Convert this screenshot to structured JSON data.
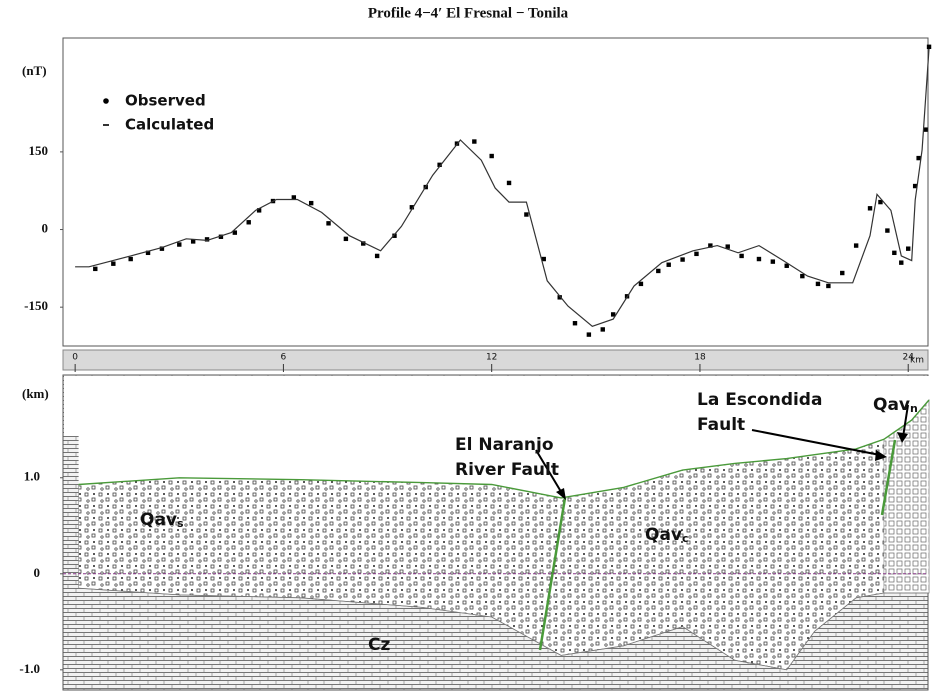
{
  "chart_data": [
    {
      "type": "line",
      "title": "Profile 4−4′ El Fresnal − Tonila",
      "ylabel": "(nT)",
      "xlabel": "km",
      "xlim": [
        -0.35,
        24.57
      ],
      "xticks": [
        0,
        6,
        12,
        18,
        24
      ],
      "ylim": [
        -225,
        370
      ],
      "yticks": [
        150,
        0,
        -150
      ],
      "series": [
        {
          "name": "Observed",
          "color": "#000000",
          "marker": "square",
          "x": [
            0.58,
            1.1,
            1.6,
            2.1,
            2.5,
            3.0,
            3.4,
            3.8,
            4.2,
            4.6,
            5.0,
            5.3,
            5.7,
            6.3,
            6.8,
            7.3,
            7.8,
            8.3,
            8.7,
            9.2,
            9.7,
            10.1,
            10.5,
            11.0,
            11.5,
            12.0,
            12.5,
            13.0,
            13.5,
            13.96,
            14.4,
            14.8,
            15.2,
            15.5,
            15.9,
            16.3,
            16.8,
            17.1,
            17.5,
            17.9,
            18.3,
            18.8,
            19.2,
            19.7,
            20.1,
            20.5,
            20.95,
            21.4,
            21.7,
            22.1,
            22.5,
            22.9,
            23.2,
            23.4,
            23.6,
            23.8,
            24.0,
            24.2,
            24.3,
            24.5,
            24.6
          ],
          "values": [
            -76,
            -66,
            -57,
            -45,
            -37,
            -29,
            -23,
            -19,
            -14,
            -6,
            14,
            37,
            55,
            62,
            51,
            12,
            -18,
            -27,
            -51,
            -12,
            43,
            82,
            125,
            166,
            170,
            142,
            90,
            29,
            -57,
            -131,
            -181,
            -203,
            -193,
            -164,
            -129,
            -105,
            -80,
            -68,
            -58,
            -47,
            -31,
            -33,
            -51,
            -57,
            -62,
            -70,
            -90,
            -105,
            -109,
            -84,
            -31,
            41,
            53,
            -2,
            -45,
            -64,
            -37,
            84,
            138,
            193,
            353
          ]
        },
        {
          "name": "Calculated",
          "color": "#333333",
          "x": [
            0,
            0.4,
            1.6,
            2.5,
            3.2,
            3.8,
            4.5,
            5.2,
            5.8,
            6.4,
            7.1,
            7.9,
            8.8,
            9.4,
            10.3,
            11.1,
            11.7,
            12.1,
            12.5,
            13.0,
            13.6,
            14.2,
            14.9,
            15.5,
            16.1,
            16.9,
            17.8,
            18.5,
            19.1,
            19.7,
            20.4,
            21.1,
            21.7,
            22.4,
            22.9,
            23.1,
            23.5,
            23.8,
            24.1,
            24.2,
            24.4,
            24.6
          ],
          "values": [
            -72,
            -72,
            -51,
            -35,
            -18,
            -21,
            -6,
            37,
            58,
            58,
            33,
            -12,
            -41,
            6,
            105,
            173,
            134,
            80,
            53,
            53,
            -99,
            -148,
            -187,
            -173,
            -109,
            -64,
            -41,
            -31,
            -45,
            -31,
            -60,
            -90,
            -103,
            -103,
            -12,
            68,
            37,
            -51,
            -60,
            57,
            154,
            349
          ]
        }
      ]
    },
    {
      "type": "cross-section",
      "ylabel": "(km)",
      "xlim": [
        -0.35,
        24.57
      ],
      "ylim": [
        -1.21,
        2.07
      ],
      "yticks": [
        {
          "value": 1,
          "label": "1.0"
        },
        0,
        {
          "value": -1,
          "label": "-1.0"
        }
      ],
      "x": [
        0.1,
        3,
        6.5,
        10,
        12,
        14,
        15.8,
        17.5,
        19,
        20.5,
        21.3,
        22.5,
        23.3,
        24.1,
        24.6
      ],
      "surface": [
        0.93,
        1.0,
        0.98,
        0.95,
        0.93,
        0.79,
        0.9,
        1.08,
        1.15,
        1.2,
        1.24,
        1.3,
        1.4,
        1.6,
        1.81
      ],
      "base": [
        -0.15,
        -0.22,
        -0.25,
        -0.35,
        -0.45,
        -0.85,
        -0.75,
        -0.55,
        -0.9,
        -1.0,
        -0.6,
        -0.25,
        -0.2,
        -0.2,
        -0.2
      ],
      "annotations": [
        {
          "text": "Qav",
          "sub": "s"
        },
        {
          "text": "Qav",
          "sub": "c"
        },
        {
          "text": "Qav",
          "sub": "n"
        },
        {
          "text": "Cz"
        },
        {
          "lines": [
            "El Naranjo",
            "River Fault"
          ]
        },
        {
          "lines": [
            "La Escondida",
            "Fault"
          ]
        }
      ]
    }
  ]
}
